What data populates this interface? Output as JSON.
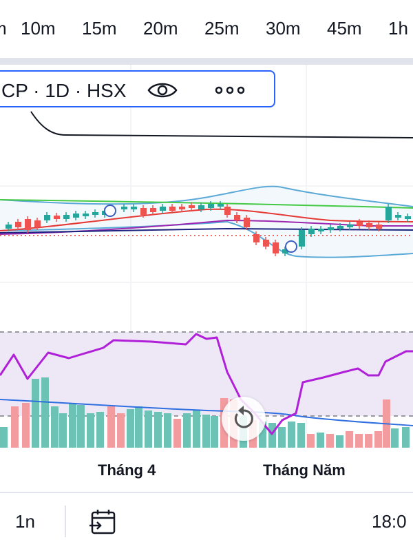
{
  "toolbar": {
    "timeframes": [
      {
        "label": "m"
      },
      {
        "label": "10m"
      },
      {
        "label": "15m"
      },
      {
        "label": "20m"
      },
      {
        "label": "25m"
      },
      {
        "label": "30m"
      },
      {
        "label": "45m"
      },
      {
        "label": "1h"
      }
    ]
  },
  "legend": {
    "symbol_text": "CP · 1D · HSX",
    "icons": [
      "eye-icon",
      "more-icon"
    ]
  },
  "chart_data": {
    "type": "candlestick",
    "x_labels": [
      "Tháng 4",
      "Tháng Năm"
    ],
    "indicators": [
      "bollinger-bands",
      "moving-averages",
      "rsi",
      "volume"
    ],
    "rsi_band": [
      "upper",
      "lower"
    ],
    "colors": {
      "up": "#26a69a",
      "down": "#ef5350",
      "bollinger": "#5aa9d6",
      "ma_fast": "#e53935",
      "ma_mid": "#9c27b0",
      "ma_slow": "#43c943",
      "ma_navy": "#1a237e",
      "rsi": "#b020d8",
      "rsi_band_fill": "#ede7f6",
      "volume_up": "#6cc3b5",
      "volume_down": "#f29ca0",
      "volume_ma": "#2f6fe0"
    }
  },
  "bottom": {
    "range_label": "1n",
    "goto_icon": "calendar-goto-icon",
    "time": "18:0"
  },
  "reset_icon": "reset-chart-icon"
}
